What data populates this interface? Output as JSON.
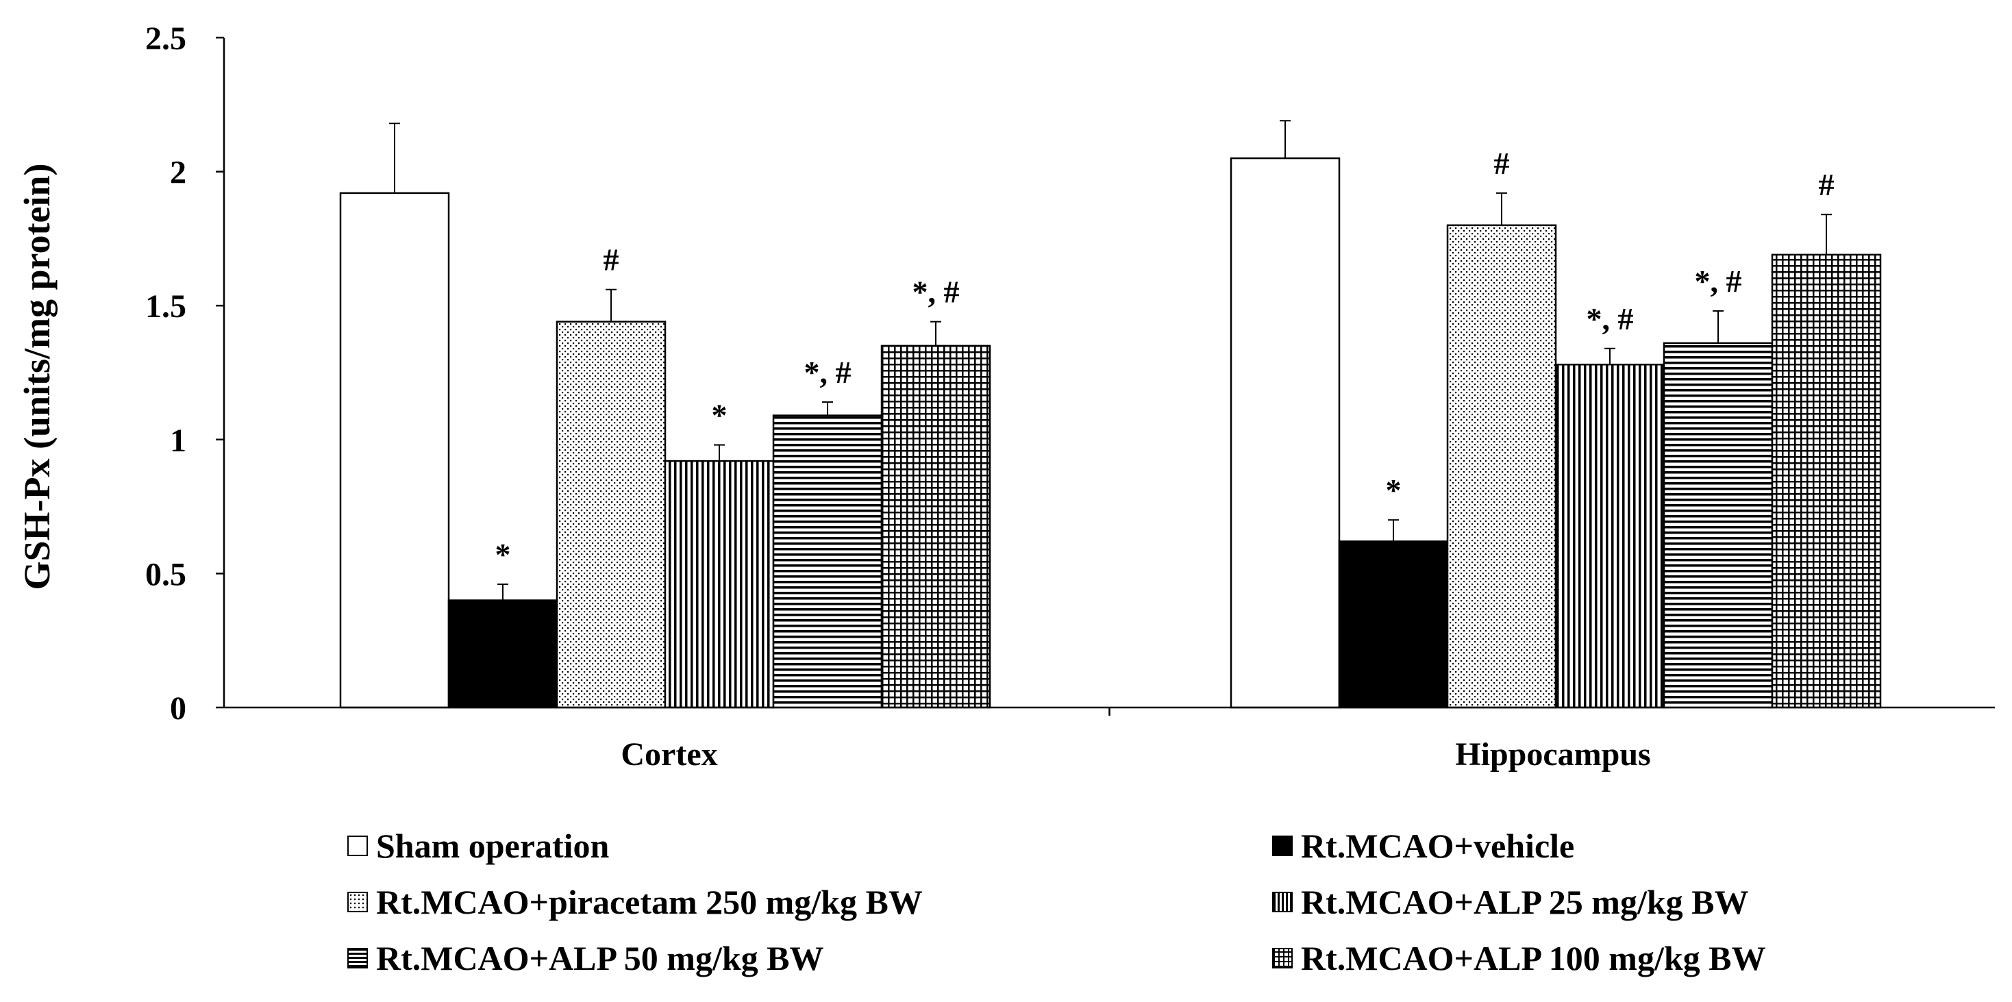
{
  "chart_data": {
    "type": "bar",
    "title": "",
    "xlabel": "",
    "ylabel": "GSH-Px (units/mg protein)",
    "ylim": [
      0,
      2.5
    ],
    "yticks": [
      "0",
      "0.5",
      "1",
      "1.5",
      "2",
      "2.5"
    ],
    "ytick_values": [
      0,
      0.5,
      1,
      1.5,
      2,
      2.5
    ],
    "categories": [
      "Cortex",
      "Hippocampus"
    ],
    "series": [
      {
        "name": "Sham operation",
        "pattern": "none",
        "values": [
          1.92,
          2.05
        ],
        "errors": [
          0.26,
          0.14
        ],
        "annotations": [
          "",
          ""
        ]
      },
      {
        "name": "Rt.MCAO+vehicle",
        "pattern": "solid",
        "values": [
          0.4,
          0.62
        ],
        "errors": [
          0.06,
          0.08
        ],
        "annotations": [
          "*",
          "*"
        ]
      },
      {
        "name": "Rt.MCAO+piracetam 250 mg/kg BW",
        "pattern": "dots",
        "values": [
          1.44,
          1.8
        ],
        "errors": [
          0.12,
          0.12
        ],
        "annotations": [
          "#",
          "#"
        ]
      },
      {
        "name": "Rt.MCAO+ALP 25 mg/kg BW",
        "pattern": "vertical",
        "values": [
          0.92,
          1.28
        ],
        "errors": [
          0.06,
          0.06
        ],
        "annotations": [
          "*",
          "*, #"
        ]
      },
      {
        "name": "Rt.MCAO+ALP 50 mg/kg BW",
        "pattern": "horizontal",
        "values": [
          1.09,
          1.36
        ],
        "errors": [
          0.05,
          0.12
        ],
        "annotations": [
          "*, #",
          "*, #"
        ]
      },
      {
        "name": "Rt.MCAO+ALP 100 mg/kg BW",
        "pattern": "grid",
        "values": [
          1.35,
          1.69
        ],
        "errors": [
          0.09,
          0.15
        ],
        "annotations": [
          "*, #",
          "#"
        ]
      }
    ],
    "legend_placement": "bottom",
    "grid": false
  }
}
